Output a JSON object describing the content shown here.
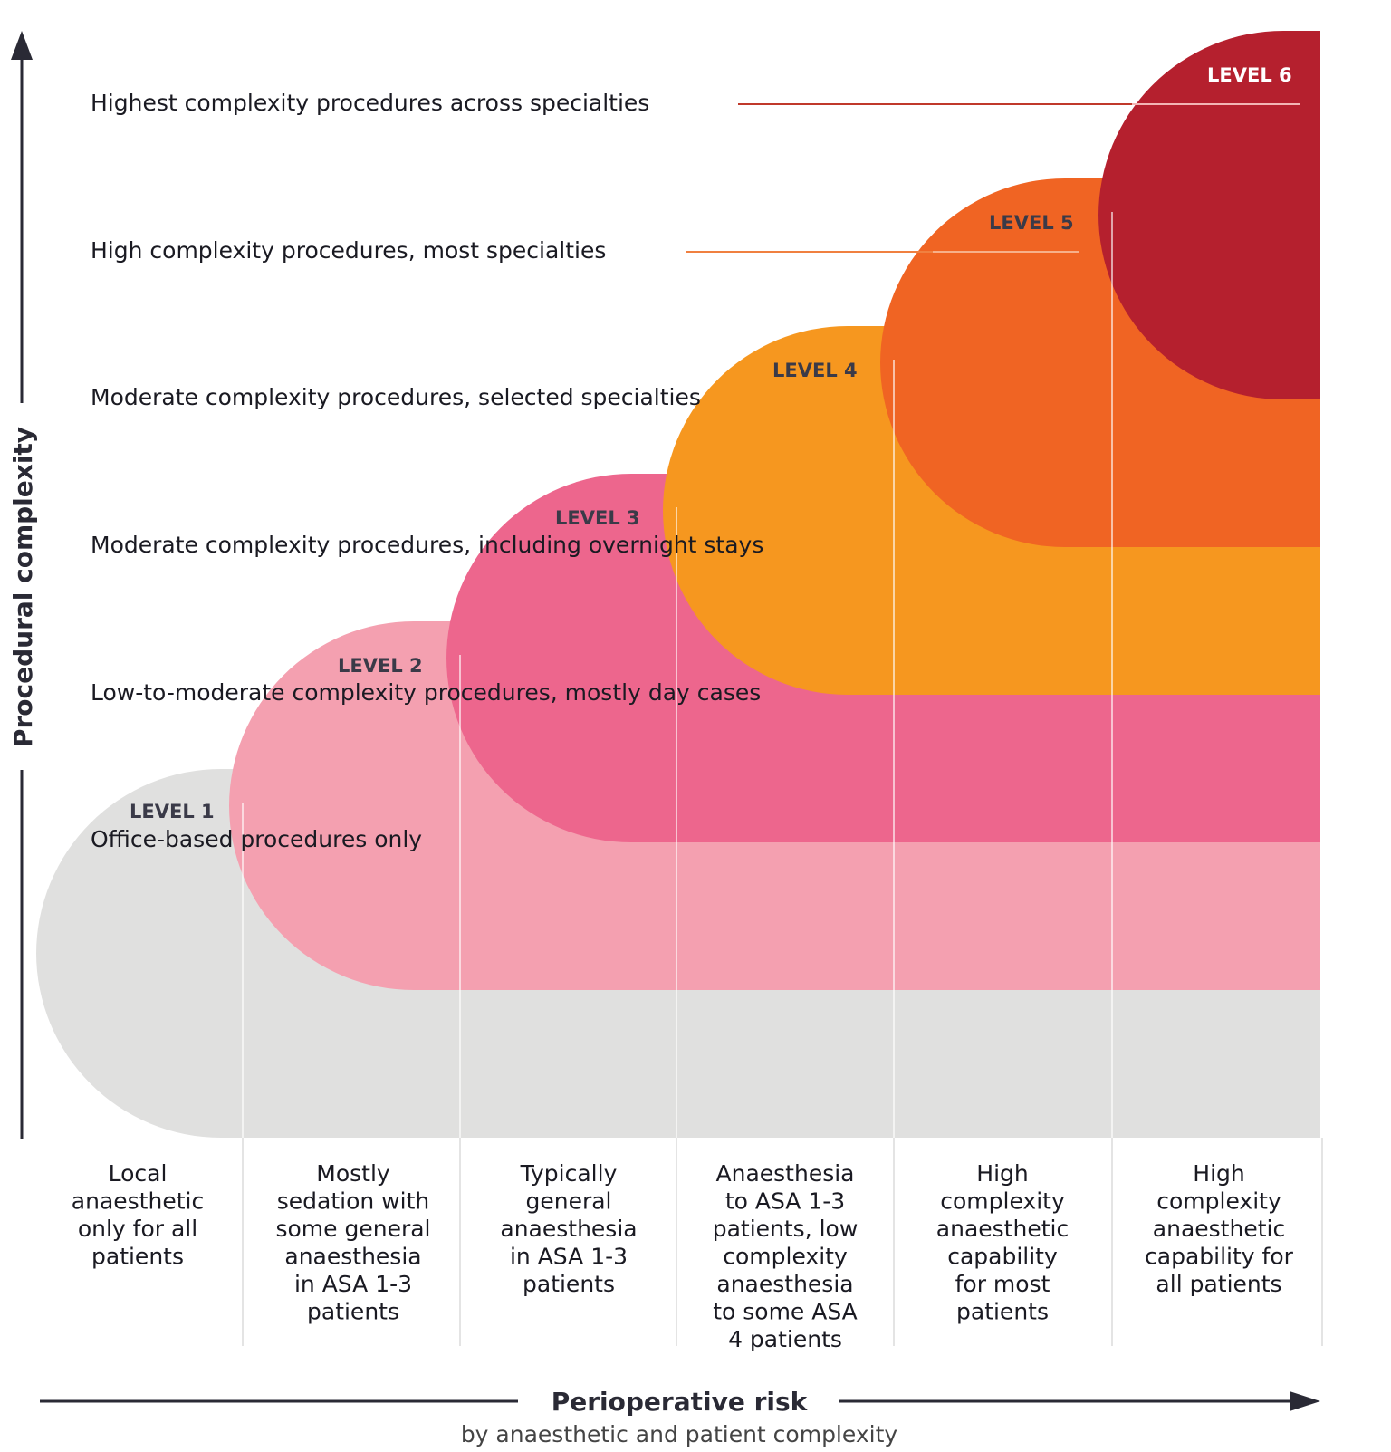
{
  "y_axis": {
    "label": "Procedural complexity"
  },
  "x_axis": {
    "label": "Perioperative risk",
    "sublabel": "by anaesthetic and patient complexity"
  },
  "levels": [
    {
      "label": "LEVEL 1",
      "description": "Office-based procedures only",
      "color": "#e0e0df"
    },
    {
      "label": "LEVEL 2",
      "description": "Low-to-moderate complexity procedures, mostly day cases",
      "color": "#f4a0b0"
    },
    {
      "label": "LEVEL 3",
      "description": "Moderate complexity procedures, including overnight stays",
      "color": "#ed668d"
    },
    {
      "label": "LEVEL 4",
      "description": "Moderate complexity procedures, selected specialties",
      "color": "#f6971f"
    },
    {
      "label": "LEVEL 5",
      "description": "High complexity procedures, most specialties",
      "color": "#f06423"
    },
    {
      "label": "LEVEL 6",
      "description": "Highest complexity procedures across specialties",
      "color": "#b5202e"
    }
  ],
  "columns": [
    {
      "lines": [
        "Local",
        "anaesthetic",
        "only for all",
        "patients"
      ]
    },
    {
      "lines": [
        "Mostly",
        "sedation with",
        "some general",
        "anaesthesia",
        "in ASA 1-3",
        "patients"
      ]
    },
    {
      "lines": [
        "Typically",
        "general",
        "anaesthesia",
        "in ASA 1-3",
        "patients"
      ]
    },
    {
      "lines": [
        "Anaesthesia",
        "to ASA 1-3",
        "patients, low",
        "complexity",
        "anaesthesia",
        "to some ASA",
        "4 patients"
      ]
    },
    {
      "lines": [
        "High",
        "complexity",
        "anaesthetic",
        "capability",
        "for most",
        "patients"
      ]
    },
    {
      "lines": [
        "High",
        "complexity",
        "anaesthetic",
        "capability for",
        "all patients"
      ]
    }
  ]
}
